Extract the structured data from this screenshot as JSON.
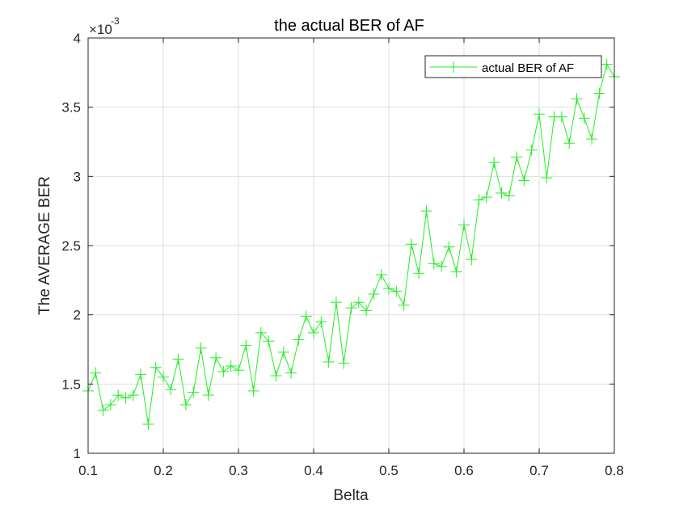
{
  "chart_data": {
    "type": "line",
    "title": "the actual BER of AF",
    "xlabel": "Belta",
    "ylabel": "The AVERAGE BER",
    "y_exponent_label": "×10",
    "y_exponent_power": "-3",
    "xlim": [
      0.1,
      0.8
    ],
    "ylim": [
      1,
      4
    ],
    "xticks": [
      0.1,
      0.2,
      0.3,
      0.4,
      0.5,
      0.6,
      0.7,
      0.8
    ],
    "xtick_labels": [
      "0.1",
      "0.2",
      "0.3",
      "0.4",
      "0.5",
      "0.6",
      "0.7",
      "0.8"
    ],
    "yticks": [
      1,
      1.5,
      2,
      2.5,
      3,
      3.5,
      4
    ],
    "ytick_labels": [
      "1",
      "1.5",
      "2",
      "2.5",
      "3",
      "3.5",
      "4"
    ],
    "grid": true,
    "legend_position": "top-right",
    "series": [
      {
        "name": "actual BER of AF",
        "color": "#22ee22",
        "marker": "plus",
        "x": [
          0.1,
          0.11,
          0.12,
          0.13,
          0.14,
          0.15,
          0.16,
          0.17,
          0.18,
          0.19,
          0.2,
          0.21,
          0.22,
          0.23,
          0.24,
          0.25,
          0.26,
          0.27,
          0.28,
          0.29,
          0.3,
          0.31,
          0.32,
          0.33,
          0.34,
          0.35,
          0.36,
          0.37,
          0.38,
          0.39,
          0.4,
          0.41,
          0.42,
          0.43,
          0.44,
          0.45,
          0.46,
          0.47,
          0.48,
          0.49,
          0.5,
          0.51,
          0.52,
          0.53,
          0.54,
          0.55,
          0.56,
          0.57,
          0.58,
          0.59,
          0.6,
          0.61,
          0.62,
          0.63,
          0.64,
          0.65,
          0.66,
          0.67,
          0.68,
          0.69,
          0.7,
          0.71,
          0.72,
          0.73,
          0.74,
          0.75,
          0.76,
          0.77,
          0.78,
          0.79,
          0.8
        ],
        "y": [
          1.45,
          1.58,
          1.31,
          1.35,
          1.42,
          1.4,
          1.42,
          1.57,
          1.21,
          1.62,
          1.55,
          1.46,
          1.68,
          1.35,
          1.44,
          1.76,
          1.42,
          1.69,
          1.59,
          1.63,
          1.6,
          1.78,
          1.45,
          1.87,
          1.81,
          1.56,
          1.73,
          1.58,
          1.82,
          1.99,
          1.87,
          1.95,
          1.66,
          2.09,
          1.65,
          2.05,
          2.09,
          2.03,
          2.15,
          2.29,
          2.19,
          2.17,
          2.07,
          2.51,
          2.3,
          2.75,
          2.37,
          2.35,
          2.49,
          2.31,
          2.65,
          2.4,
          2.83,
          2.85,
          3.1,
          2.88,
          2.86,
          3.14,
          2.97,
          3.19,
          3.45,
          2.99,
          3.43,
          3.43,
          3.24,
          3.56,
          3.42,
          3.27,
          3.6,
          3.81,
          3.72
        ]
      }
    ]
  }
}
